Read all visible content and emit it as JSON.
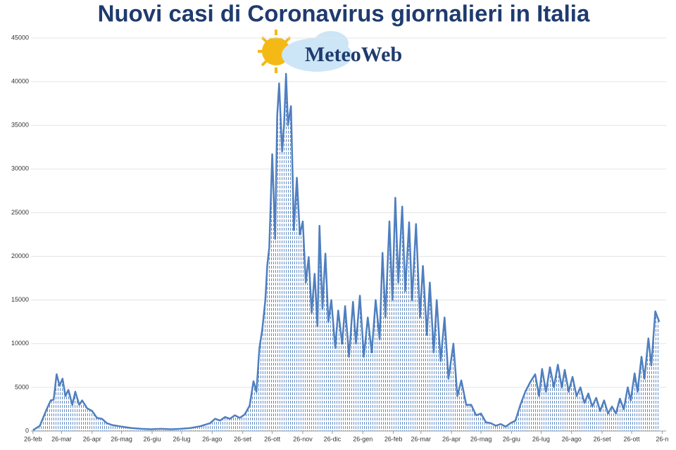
{
  "chart_data": {
    "type": "line",
    "title": "Nuovi casi di Coronavirus giornalieri in Italia",
    "logo": "MeteoWeb",
    "x": [
      0,
      7,
      14,
      18,
      21,
      24,
      27,
      30,
      33,
      36,
      40,
      43,
      47,
      50,
      55,
      60,
      65,
      70,
      75,
      80,
      90,
      100,
      110,
      120,
      130,
      140,
      150,
      160,
      170,
      180,
      185,
      190,
      195,
      200,
      205,
      210,
      215,
      220,
      224,
      227,
      230,
      233,
      236,
      238,
      240,
      243,
      246,
      248,
      250,
      253,
      255,
      257,
      259,
      262,
      265,
      268,
      271,
      274,
      277,
      280,
      283,
      286,
      289,
      291,
      294,
      297,
      300,
      303,
      307,
      310,
      314,
      317,
      321,
      325,
      328,
      332,
      336,
      340,
      344,
      348,
      352,
      355,
      358,
      362,
      365,
      368,
      371,
      375,
      378,
      382,
      385,
      389,
      393,
      396,
      400,
      403,
      407,
      410,
      414,
      418,
      422,
      427,
      431,
      435,
      440,
      445,
      450,
      455,
      460,
      465,
      470,
      475,
      480,
      485,
      490,
      495,
      500,
      505,
      510,
      514,
      517,
      521,
      525,
      529,
      533,
      537,
      540,
      544,
      548,
      552,
      556,
      560,
      564,
      568,
      572,
      576,
      580,
      584,
      588,
      592,
      596,
      600,
      604,
      607,
      611,
      614,
      618,
      621,
      625,
      628,
      632,
      636
    ],
    "series": [
      {
        "name": null,
        "color": "#4f7fbf",
        "values": [
          100,
          600,
          2500,
          3500,
          3600,
          6500,
          5200,
          6000,
          4000,
          4700,
          3000,
          4500,
          3000,
          3500,
          2600,
          2300,
          1500,
          1400,
          900,
          700,
          500,
          350,
          250,
          200,
          250,
          200,
          250,
          350,
          550,
          900,
          1400,
          1200,
          1600,
          1400,
          1800,
          1500,
          1900,
          2900,
          5700,
          4500,
          9500,
          11700,
          15000,
          19000,
          21000,
          31700,
          22000,
          36000,
          39800,
          32000,
          35000,
          40900,
          35000,
          37200,
          23000,
          29000,
          22500,
          24000,
          17000,
          19900,
          13500,
          18000,
          12000,
          23500,
          14000,
          20300,
          12500,
          15000,
          9500,
          13800,
          10000,
          14300,
          8500,
          14800,
          10000,
          15500,
          8500,
          13000,
          9000,
          15000,
          10500,
          20400,
          13000,
          24000,
          15000,
          26700,
          17000,
          25700,
          16000,
          23900,
          15000,
          23700,
          13000,
          18900,
          11000,
          17000,
          9000,
          15000,
          8000,
          13000,
          6000,
          10000,
          4000,
          5800,
          3000,
          3000,
          1800,
          2000,
          1000,
          900,
          600,
          800,
          500,
          900,
          1200,
          3000,
          4500,
          5600,
          6500,
          4000,
          7100,
          4500,
          7300,
          5000,
          7600,
          5000,
          7000,
          4500,
          6200,
          4000,
          5000,
          3200,
          4300,
          2800,
          3800,
          2300,
          3500,
          2000,
          2800,
          2000,
          3700,
          2500,
          5000,
          3500,
          6600,
          4500,
          8500,
          6000,
          10600,
          7500,
          13700,
          12500
        ]
      }
    ],
    "xlim": [
      -2,
      643
    ],
    "xticks": [
      {
        "value": 0,
        "label": "26-feb"
      },
      {
        "value": 29,
        "label": "26-mar"
      },
      {
        "value": 60,
        "label": "26-apr"
      },
      {
        "value": 90,
        "label": "26-mag"
      },
      {
        "value": 121,
        "label": "26-giu"
      },
      {
        "value": 151,
        "label": "26-lug"
      },
      {
        "value": 182,
        "label": "26-ago"
      },
      {
        "value": 213,
        "label": "26-set"
      },
      {
        "value": 243,
        "label": "26-ott"
      },
      {
        "value": 274,
        "label": "26-nov"
      },
      {
        "value": 304,
        "label": "26-dic"
      },
      {
        "value": 335,
        "label": "26-gen"
      },
      {
        "value": 366,
        "label": "26-feb"
      },
      {
        "value": 394,
        "label": "26-mar"
      },
      {
        "value": 425,
        "label": "26-apr"
      },
      {
        "value": 455,
        "label": "26-mag"
      },
      {
        "value": 486,
        "label": "26-giu"
      },
      {
        "value": 516,
        "label": "26-lug"
      },
      {
        "value": 547,
        "label": "26-ago"
      },
      {
        "value": 578,
        "label": "26-set"
      },
      {
        "value": 608,
        "label": "26-ott"
      },
      {
        "value": 639,
        "label": "26-n"
      }
    ],
    "ylim": [
      0,
      45000
    ],
    "yticks": [
      0,
      5000,
      10000,
      15000,
      20000,
      25000,
      30000,
      35000,
      40000,
      45000
    ],
    "grid": true
  }
}
